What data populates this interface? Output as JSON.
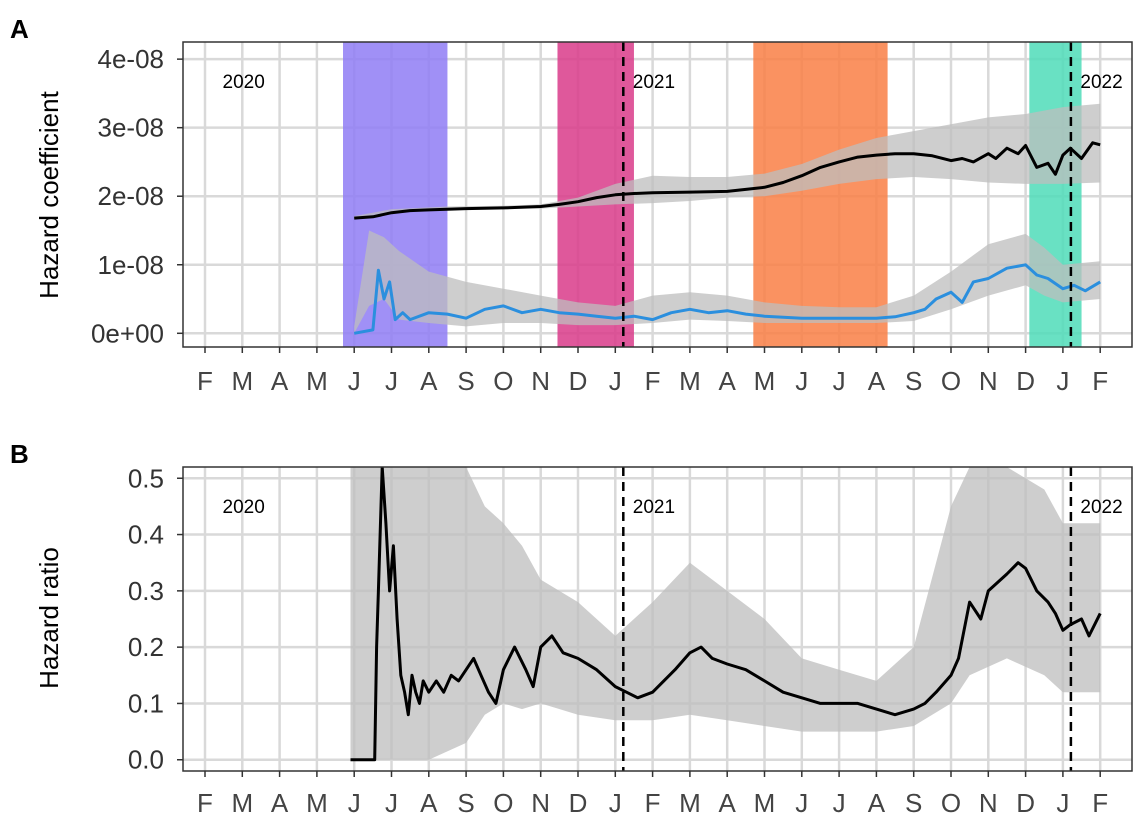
{
  "colors": {
    "grid": "#d9d9d9",
    "frame": "#333333",
    "ribbon": "#bdbdbd",
    "line_black": "#000000",
    "line_blue": "#2b8fde",
    "band_purple": "#8f7df5",
    "band_magenta": "#d93b8a",
    "band_orange": "#f97f45",
    "band_teal": "#4fdcb8"
  },
  "chart_data": [
    {
      "panel": "A",
      "type": "line",
      "ylabel": "Hazard coefficient",
      "ylim": [
        -2e-09,
        4.25e-08
      ],
      "yticks": [
        0,
        1e-08,
        2e-08,
        3e-08,
        4e-08
      ],
      "ytick_labels": [
        "0e+00",
        "1e-08",
        "2e-08",
        "3e-08",
        "4e-08"
      ],
      "x_tick_labels": [
        "F",
        "M",
        "A",
        "M",
        "J",
        "J",
        "A",
        "S",
        "O",
        "N",
        "D",
        "J",
        "F",
        "M",
        "A",
        "M",
        "J",
        "J",
        "A",
        "S",
        "O",
        "N",
        "D",
        "J",
        "F"
      ],
      "year_labels": [
        {
          "label": "2020",
          "month": 0.5
        },
        {
          "label": "2021",
          "month": 11.5
        },
        {
          "label": "2022",
          "month": 23.5
        }
      ],
      "year_dividers": [
        11.0,
        23.0
      ],
      "grid": true,
      "bands": [
        {
          "start": 3.7,
          "end": 6.5,
          "color": "#8f7df5"
        },
        {
          "start": 9.45,
          "end": 11.5,
          "color": "#d93b8a"
        },
        {
          "start": 14.7,
          "end": 18.3,
          "color": "#f97f45"
        },
        {
          "start": 22.1,
          "end": 23.5,
          "color": "#4fdcb8"
        }
      ],
      "series": [
        {
          "color": "#000000",
          "ribbon": [
            [
              4.0,
              1.67e-08,
              1.71e-08
            ],
            [
              5.0,
              1.77e-08,
              1.81e-08
            ],
            [
              6.5,
              1.8e-08,
              1.85e-08
            ],
            [
              8.0,
              1.82e-08,
              1.86e-08
            ],
            [
              9.0,
              1.82e-08,
              1.88e-08
            ],
            [
              10.0,
              1.85e-08,
              1.98e-08
            ],
            [
              11.0,
              1.88e-08,
              2.18e-08
            ],
            [
              12.0,
              1.9e-08,
              2.3e-08
            ],
            [
              13.0,
              1.93e-08,
              2.28e-08
            ],
            [
              14.0,
              1.98e-08,
              2.28e-08
            ],
            [
              15.0,
              2e-08,
              2.33e-08
            ],
            [
              16.0,
              2.08e-08,
              2.47e-08
            ],
            [
              17.0,
              2.18e-08,
              2.68e-08
            ],
            [
              18.0,
              2.25e-08,
              2.85e-08
            ],
            [
              19.0,
              2.28e-08,
              2.95e-08
            ],
            [
              20.0,
              2.25e-08,
              3.05e-08
            ],
            [
              21.0,
              2.2e-08,
              3.15e-08
            ],
            [
              22.0,
              2.18e-08,
              3.2e-08
            ],
            [
              23.0,
              2.18e-08,
              3.3e-08
            ],
            [
              24.0,
              2.2e-08,
              3.35e-08
            ]
          ],
          "x": [
            4.0,
            4.5,
            5.0,
            5.5,
            6.0,
            6.5,
            7.0,
            8.0,
            9.0,
            9.5,
            10.0,
            10.5,
            11.0,
            11.5,
            12.0,
            13.0,
            14.0,
            14.5,
            15.0,
            15.5,
            16.0,
            16.5,
            17.0,
            17.5,
            18.0,
            18.5,
            19.0,
            19.5,
            20.0,
            20.3,
            20.6,
            21.0,
            21.2,
            21.5,
            21.8,
            22.0,
            22.3,
            22.6,
            22.8,
            23.0,
            23.2,
            23.5,
            23.8,
            24.0
          ],
          "y": [
            1.68e-08,
            1.7e-08,
            1.76e-08,
            1.79e-08,
            1.8e-08,
            1.81e-08,
            1.82e-08,
            1.83e-08,
            1.85e-08,
            1.88e-08,
            1.92e-08,
            1.98e-08,
            2.02e-08,
            2.04e-08,
            2.05e-08,
            2.06e-08,
            2.07e-08,
            2.1e-08,
            2.13e-08,
            2.2e-08,
            2.3e-08,
            2.42e-08,
            2.5e-08,
            2.57e-08,
            2.6e-08,
            2.62e-08,
            2.62e-08,
            2.59e-08,
            2.52e-08,
            2.55e-08,
            2.5e-08,
            2.62e-08,
            2.55e-08,
            2.7e-08,
            2.62e-08,
            2.74e-08,
            2.42e-08,
            2.48e-08,
            2.32e-08,
            2.6e-08,
            2.7e-08,
            2.55e-08,
            2.78e-08,
            2.75e-08
          ]
        },
        {
          "color": "#2b8fde",
          "ribbon": [
            [
              4.0,
              0.0,
              1e-09
            ],
            [
              4.4,
              4e-09,
              1.5e-08
            ],
            [
              4.8,
              5e-09,
              1.4e-08
            ],
            [
              5.2,
              2e-09,
              1.2e-08
            ],
            [
              6.0,
              1.5e-09,
              9e-09
            ],
            [
              7.0,
              1e-09,
              7.5e-09
            ],
            [
              8.0,
              1.5e-09,
              6.5e-09
            ],
            [
              9.0,
              1.5e-09,
              5.5e-09
            ],
            [
              10.0,
              1.2e-09,
              4.5e-09
            ],
            [
              11.0,
              1.2e-09,
              4e-09
            ],
            [
              12.0,
              1.5e-09,
              5.5e-09
            ],
            [
              13.0,
              2e-09,
              6e-09
            ],
            [
              14.0,
              1.8e-09,
              5.5e-09
            ],
            [
              15.0,
              1.5e-09,
              4.5e-09
            ],
            [
              16.0,
              1.5e-09,
              4e-09
            ],
            [
              17.0,
              1.5e-09,
              3.8e-09
            ],
            [
              18.0,
              1.5e-09,
              3.8e-09
            ],
            [
              19.0,
              1.8e-09,
              5.5e-09
            ],
            [
              20.0,
              3.5e-09,
              9e-09
            ],
            [
              21.0,
              5.5e-09,
              1.3e-08
            ],
            [
              22.0,
              7e-09,
              1.45e-08
            ],
            [
              22.5,
              5.5e-09,
              1.25e-08
            ],
            [
              23.0,
              4.5e-09,
              1e-08
            ],
            [
              24.0,
              5e-09,
              1.05e-08
            ]
          ],
          "x": [
            4.0,
            4.5,
            4.65,
            4.8,
            4.95,
            5.1,
            5.3,
            5.5,
            6.0,
            6.5,
            7.0,
            7.5,
            8.0,
            8.5,
            9.0,
            9.5,
            10.0,
            10.5,
            11.0,
            11.5,
            12.0,
            12.5,
            13.0,
            13.5,
            14.0,
            14.5,
            15.0,
            16.0,
            17.0,
            18.0,
            18.5,
            19.0,
            19.3,
            19.6,
            20.0,
            20.3,
            20.6,
            21.0,
            21.5,
            22.0,
            22.3,
            22.6,
            23.0,
            23.3,
            23.6,
            24.0
          ],
          "y": [
            0.0,
            5e-10,
            9.2e-09,
            5e-09,
            7.5e-09,
            2e-09,
            3e-09,
            2e-09,
            3e-09,
            2.8e-09,
            2.2e-09,
            3.5e-09,
            4e-09,
            3e-09,
            3.5e-09,
            3e-09,
            2.8e-09,
            2.5e-09,
            2.2e-09,
            2.5e-09,
            2e-09,
            3e-09,
            3.5e-09,
            3e-09,
            3.3e-09,
            2.8e-09,
            2.5e-09,
            2.2e-09,
            2.2e-09,
            2.2e-09,
            2.4e-09,
            3e-09,
            3.5e-09,
            5e-09,
            6e-09,
            4.5e-09,
            7.5e-09,
            8e-09,
            9.5e-09,
            1e-08,
            8.5e-09,
            8e-09,
            6.5e-09,
            7e-09,
            6.2e-09,
            7.5e-09
          ]
        }
      ]
    },
    {
      "panel": "B",
      "type": "line",
      "ylabel": "Hazard ratio",
      "ylim": [
        -0.02,
        0.52
      ],
      "yticks": [
        0,
        0.1,
        0.2,
        0.3,
        0.4,
        0.5
      ],
      "ytick_labels": [
        "0.0",
        "0.1",
        "0.2",
        "0.3",
        "0.4",
        "0.5"
      ],
      "x_tick_labels": [
        "F",
        "M",
        "A",
        "M",
        "J",
        "J",
        "A",
        "S",
        "O",
        "N",
        "D",
        "J",
        "F",
        "M",
        "A",
        "M",
        "J",
        "J",
        "A",
        "S",
        "O",
        "N",
        "D",
        "J",
        "F"
      ],
      "year_labels": [
        {
          "label": "2020",
          "month": 0.5
        },
        {
          "label": "2021",
          "month": 11.5
        },
        {
          "label": "2022",
          "month": 23.5
        }
      ],
      "year_dividers": [
        11.0,
        23.0
      ],
      "grid": true,
      "series": [
        {
          "color": "#000000",
          "ribbon": [
            [
              3.9,
              0.0,
              0.52
            ],
            [
              4.6,
              0.0,
              0.52
            ],
            [
              5.0,
              0.0,
              0.52
            ],
            [
              6.0,
              0.0,
              0.52
            ],
            [
              7.0,
              0.03,
              0.52
            ],
            [
              7.5,
              0.08,
              0.45
            ],
            [
              8.0,
              0.1,
              0.42
            ],
            [
              8.5,
              0.09,
              0.38
            ],
            [
              9.0,
              0.1,
              0.32
            ],
            [
              10.0,
              0.08,
              0.28
            ],
            [
              11.0,
              0.07,
              0.22
            ],
            [
              12.0,
              0.07,
              0.28
            ],
            [
              13.0,
              0.08,
              0.35
            ],
            [
              14.0,
              0.07,
              0.3
            ],
            [
              15.0,
              0.06,
              0.25
            ],
            [
              16.0,
              0.05,
              0.18
            ],
            [
              17.0,
              0.05,
              0.16
            ],
            [
              18.0,
              0.05,
              0.14
            ],
            [
              19.0,
              0.06,
              0.2
            ],
            [
              20.0,
              0.1,
              0.45
            ],
            [
              20.5,
              0.15,
              0.52
            ],
            [
              21.5,
              0.18,
              0.52
            ],
            [
              22.5,
              0.15,
              0.48
            ],
            [
              23.0,
              0.12,
              0.42
            ],
            [
              24.0,
              0.12,
              0.42
            ]
          ],
          "x": [
            3.9,
            4.55,
            4.6,
            4.65,
            4.75,
            4.85,
            4.95,
            5.05,
            5.15,
            5.25,
            5.35,
            5.45,
            5.55,
            5.65,
            5.75,
            5.85,
            6.0,
            6.2,
            6.4,
            6.6,
            6.8,
            7.0,
            7.2,
            7.4,
            7.6,
            7.8,
            8.0,
            8.3,
            8.6,
            8.8,
            9.0,
            9.3,
            9.6,
            10.0,
            10.5,
            11.0,
            11.3,
            11.6,
            12.0,
            12.3,
            12.6,
            13.0,
            13.3,
            13.6,
            14.0,
            14.5,
            15.0,
            15.5,
            16.0,
            16.5,
            17.0,
            17.5,
            18.0,
            18.5,
            19.0,
            19.3,
            19.6,
            20.0,
            20.2,
            20.5,
            20.8,
            21.0,
            21.5,
            21.8,
            22.0,
            22.3,
            22.6,
            22.8,
            23.0,
            23.2,
            23.5,
            23.7,
            24.0
          ],
          "y": [
            0.0,
            0.0,
            0.2,
            0.3,
            0.52,
            0.42,
            0.3,
            0.38,
            0.25,
            0.15,
            0.12,
            0.08,
            0.15,
            0.12,
            0.1,
            0.14,
            0.12,
            0.14,
            0.12,
            0.15,
            0.14,
            0.16,
            0.18,
            0.15,
            0.12,
            0.1,
            0.16,
            0.2,
            0.16,
            0.13,
            0.2,
            0.22,
            0.19,
            0.18,
            0.16,
            0.13,
            0.12,
            0.11,
            0.12,
            0.14,
            0.16,
            0.19,
            0.2,
            0.18,
            0.17,
            0.16,
            0.14,
            0.12,
            0.11,
            0.1,
            0.1,
            0.1,
            0.09,
            0.08,
            0.09,
            0.1,
            0.12,
            0.15,
            0.18,
            0.28,
            0.25,
            0.3,
            0.33,
            0.35,
            0.34,
            0.3,
            0.28,
            0.26,
            0.23,
            0.24,
            0.25,
            0.22,
            0.26
          ]
        }
      ]
    }
  ]
}
